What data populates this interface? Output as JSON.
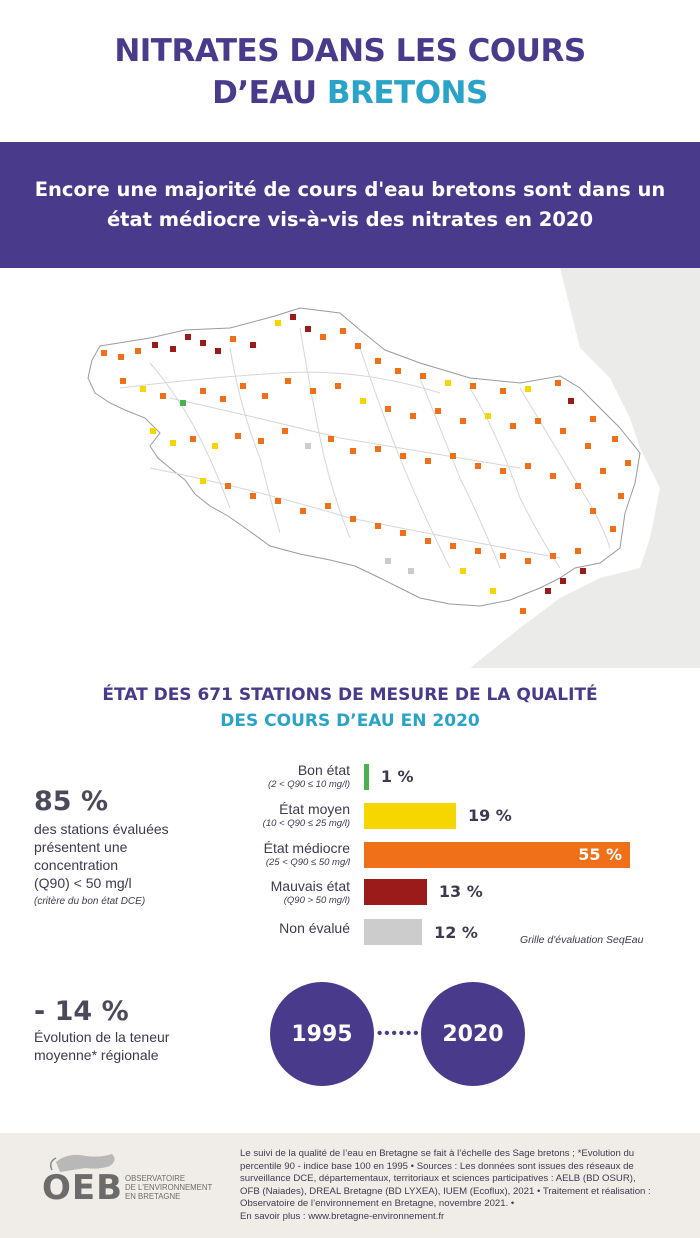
{
  "title": {
    "line1": "NITRATES DANS LES COURS",
    "line2_part1": "D’EAU ",
    "line2_accent": "BRETONS"
  },
  "banner": {
    "text": "Encore une majorité de cours d'eau bretons sont dans un état médiocre vis-à-vis des nitrates en 2020"
  },
  "stations": {
    "title_line1": "ÉTAT DES 671 STATIONS DE MESURE DE LA QUALITÉ",
    "title_line2": "DES COURS D’EAU EN 2020"
  },
  "stat1": {
    "value": "85 %",
    "line1": "des stations évaluées",
    "line2": "présentent  une",
    "line3": "concentration",
    "line4": "(Q90) < 50 mg/l",
    "note": "(critère du bon état DCE)"
  },
  "stat2": {
    "value": "- 14 %",
    "line1": "Évolution de la teneur",
    "line2": "moyenne* régionale"
  },
  "categories": [
    {
      "label": "Bon état",
      "sub": "(2 < Q90 ≤ 10 mg/l)",
      "percent": 1,
      "percent_label": "1 %",
      "color": "#4caf50"
    },
    {
      "label": "État moyen",
      "sub": "(10 < Q90 ≤ 25 mg/l)",
      "percent": 19,
      "percent_label": "19 %",
      "color": "#f7d600"
    },
    {
      "label": "État médiocre",
      "sub": "(25 < Q90 ≤  50 mg/l",
      "percent": 55,
      "percent_label": "55 %",
      "color": "#f07019"
    },
    {
      "label": "Mauvais état",
      "sub": "(Q90 > 50 mg/l)",
      "percent": 13,
      "percent_label": "13 %",
      "color": "#9b1b1b"
    },
    {
      "label": "Non évalué",
      "sub": "",
      "percent": 12,
      "percent_label": "12 %",
      "color": "#cccccc"
    }
  ],
  "grid_note": "Grille d'évaluation SeqEau",
  "years": {
    "start": "1995",
    "end": "2020"
  },
  "footer": {
    "line1": "Le suivi de la qualité de l’eau en Bretagne se fait à l’échelle des Sage bretons  ; *Evolution du",
    "line2": "percentile 90 - indice base 100 en 1995 • Sources : Les données sont issues des réseaux de",
    "line3": "surveillance DCE, départementaux, territoriaux et sciences participatives : AELB (BD OSUR),",
    "line4": "OFB (Naiades), DREAL Bretagne (BD LYXEA), IUEM (Ecoflux), 2021 • Traitement et réalisation :",
    "line5": "Observatoire de l’environnement en Bretagne, novembre 2021. •",
    "line6": "En savoir plus : www.bretagne-environnement.fr"
  },
  "logo": {
    "acronym": "OEB",
    "line1": "OBSERVATOIRE",
    "line2": "DE L'ENVIRONNEMENT",
    "line3": "EN BRETAGNE"
  },
  "colors": {
    "primary": "#4a3a8c",
    "accent": "#2aa3c8",
    "good": "#4caf50",
    "average": "#f7d600",
    "mediocre": "#f07019",
    "bad": "#9b1b1b",
    "none": "#cccccc"
  }
}
